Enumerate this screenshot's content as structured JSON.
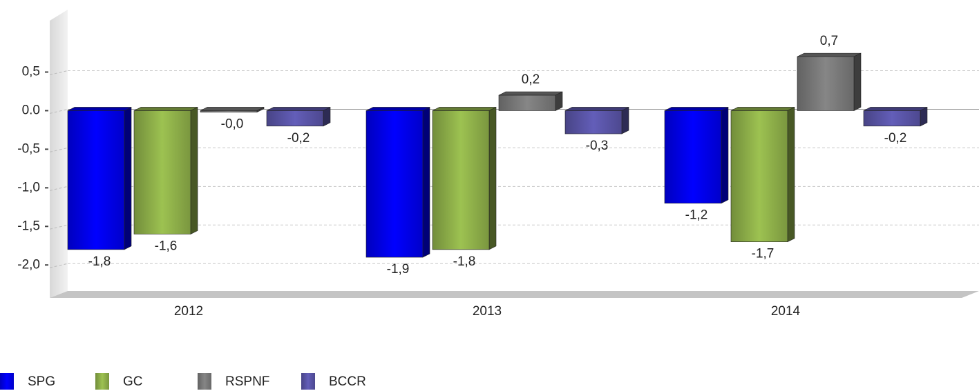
{
  "chart_data": {
    "type": "bar3d",
    "categories": [
      "2012",
      "2013",
      "2014"
    ],
    "series": [
      {
        "name": "SPG",
        "color": "#0000ee",
        "values": [
          -1.8,
          -1.9,
          -1.2
        ],
        "value_labels": [
          "-1,8",
          "-1,9",
          "-1,2"
        ]
      },
      {
        "name": "GC",
        "color": "#8fb04a",
        "values": [
          -1.6,
          -1.8,
          -1.7
        ],
        "value_labels": [
          "-1,6",
          "-1,8",
          "-1,7"
        ]
      },
      {
        "name": "RSPNF",
        "color": "#7a7a7a",
        "values": [
          -0.02,
          0.2,
          0.7
        ],
        "value_labels": [
          "-0,0",
          "0,2",
          "0,7"
        ]
      },
      {
        "name": "BCCR",
        "color": "#5a55a8",
        "values": [
          -0.2,
          -0.3,
          -0.2
        ],
        "value_labels": [
          "-0,2",
          "-0,3",
          "-0,2"
        ]
      }
    ],
    "ylim": [
      -2.4,
      1.3
    ],
    "yticks": [
      {
        "value": 0.5,
        "label": "0,5"
      },
      {
        "value": 0,
        "label": "0.0"
      },
      {
        "value": -0.5,
        "label": "-0,5"
      },
      {
        "value": -1,
        "label": "-1,0"
      },
      {
        "value": -1.5,
        "label": "-1,5"
      },
      {
        "value": -2,
        "label": "-2,0"
      }
    ],
    "grid": true,
    "legend": "bottom-left"
  }
}
